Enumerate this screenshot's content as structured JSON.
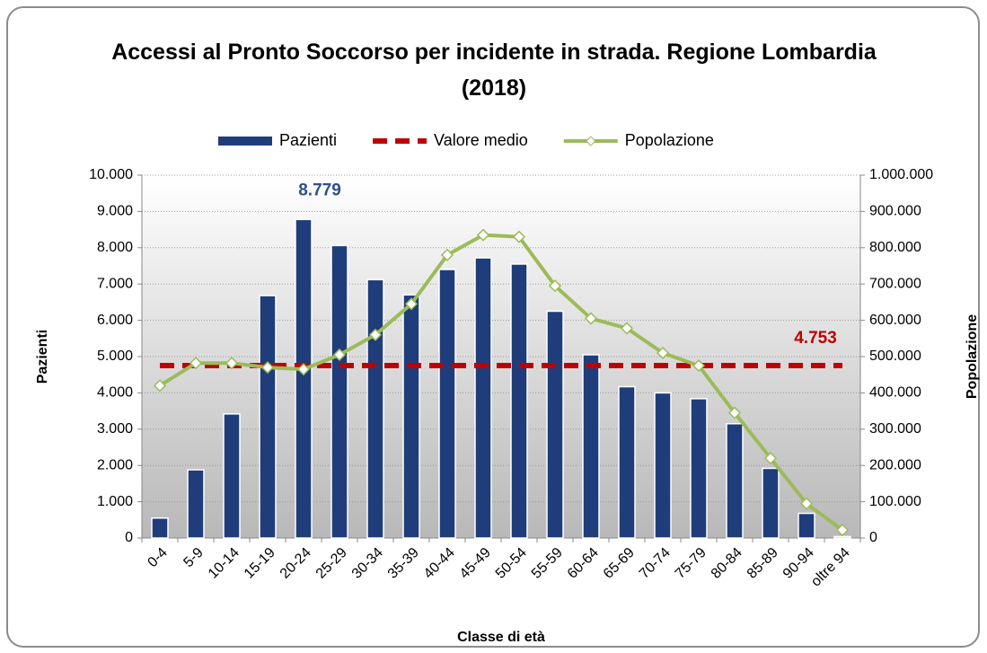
{
  "chart_data": {
    "type": "bar",
    "title": "Accessi al Pronto Soccorso per incidente in strada. Regione Lombardia (2018)",
    "xlabel": "Classe di età",
    "ylabel": "Pazienti",
    "y2label": "Popolazione",
    "categories": [
      "0-4",
      "5-9",
      "10-14",
      "15-19",
      "20-24",
      "25-29",
      "30-34",
      "35-39",
      "40-44",
      "45-49",
      "50-54",
      "55-59",
      "60-64",
      "65-69",
      "70-74",
      "75-79",
      "80-84",
      "85-89",
      "90-94",
      "oltre 94"
    ],
    "series": [
      {
        "name": "Pazienti",
        "type": "bar",
        "color": "#1f3d7a",
        "values": [
          550,
          1880,
          3420,
          6680,
          8779,
          8060,
          7120,
          6700,
          7400,
          7720,
          7550,
          6250,
          5050,
          4170,
          4000,
          3840,
          3150,
          1920,
          680,
          40
        ],
        "value_labels": [
          null,
          null,
          null,
          null,
          "8.779",
          null,
          null,
          null,
          null,
          null,
          null,
          null,
          null,
          null,
          null,
          null,
          null,
          null,
          null,
          null
        ]
      },
      {
        "name": "Valore medio",
        "type": "dashed-line",
        "color": "#c00000",
        "values": [
          4753,
          4753,
          4753,
          4753,
          4753,
          4753,
          4753,
          4753,
          4753,
          4753,
          4753,
          4753,
          4753,
          4753,
          4753,
          4753,
          4753,
          4753,
          4753,
          4753
        ],
        "value_labels": [
          null,
          null,
          null,
          null,
          null,
          null,
          null,
          null,
          null,
          null,
          null,
          null,
          null,
          null,
          null,
          null,
          null,
          null,
          null,
          "4.753"
        ]
      },
      {
        "name": "Popolazione",
        "type": "line",
        "axis": "y2",
        "color": "#9bbb59",
        "values": [
          420000,
          482000,
          482000,
          470000,
          465000,
          505000,
          560000,
          645000,
          780000,
          835000,
          830000,
          695000,
          605000,
          578000,
          510000,
          475000,
          345000,
          220000,
          95000,
          22000
        ]
      }
    ],
    "ylim": [
      0,
      10000
    ],
    "yticks": [
      0,
      {
        "value": 1000,
        "label": "1.000"
      },
      {
        "value": 2000,
        "label": "2.000"
      },
      {
        "value": 3000,
        "label": "3.000"
      },
      {
        "value": 4000,
        "label": "4.000"
      },
      {
        "value": 5000,
        "label": "5.000"
      },
      {
        "value": 6000,
        "label": "6.000"
      },
      {
        "value": 7000,
        "label": "7.000"
      },
      {
        "value": 8000,
        "label": "8.000"
      },
      {
        "value": 9000,
        "label": "9.000"
      },
      {
        "value": 10000,
        "label": "10.000"
      }
    ],
    "y2lim": [
      0,
      1000000
    ],
    "y2ticks": [
      0,
      {
        "value": 100000,
        "label": "100.000"
      },
      {
        "value": 200000,
        "label": "200.000"
      },
      {
        "value": 300000,
        "label": "300.000"
      },
      {
        "value": 400000,
        "label": "400.000"
      },
      {
        "value": 500000,
        "label": "500.000"
      },
      {
        "value": 600000,
        "label": "600.000"
      },
      {
        "value": 700000,
        "label": "700.000"
      },
      {
        "value": 800000,
        "label": "800.000"
      },
      {
        "value": 900000,
        "label": "900.000"
      },
      {
        "value": 1000000,
        "label": "1.000.000"
      }
    ],
    "grid": true,
    "legend": "top"
  }
}
